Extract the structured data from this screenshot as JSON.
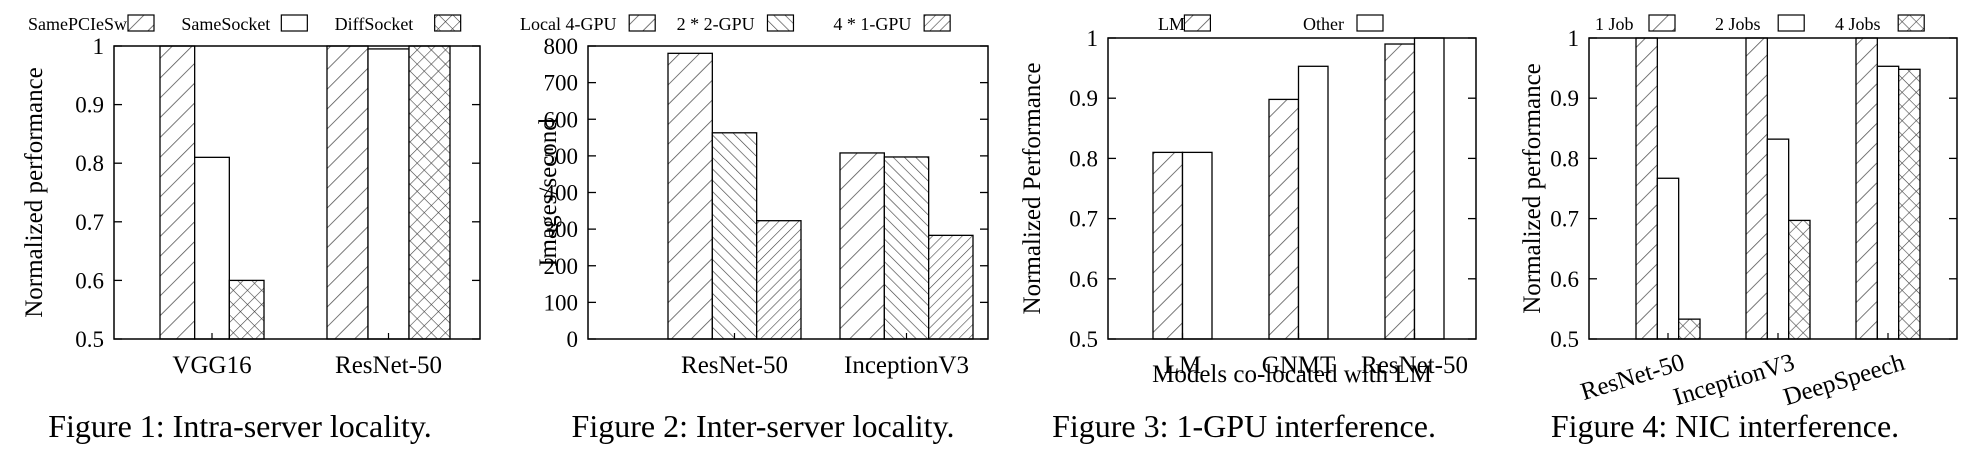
{
  "figures": [
    {
      "caption": "Figure 1: Intra-server locality.",
      "chart_data": {
        "type": "bar",
        "title": "",
        "xlabel": "",
        "ylabel": "Normalized performance",
        "categories": [
          "VGG16",
          "ResNet-50"
        ],
        "series": [
          {
            "name": "SamePCIeSw",
            "pattern": "diag",
            "values": [
              1.0,
              1.0
            ]
          },
          {
            "name": "SameSocket",
            "pattern": "plain",
            "values": [
              0.81,
              0.995
            ]
          },
          {
            "name": "DiffSocket",
            "pattern": "cross",
            "values": [
              0.6,
              1.0
            ]
          }
        ],
        "ylim": [
          0.5,
          1.0
        ],
        "yticks": [
          0.5,
          0.6,
          0.7,
          0.8,
          0.9,
          1
        ],
        "ytick_labels": [
          "0.5",
          "0.6",
          "0.7",
          "0.8",
          "0.9",
          "1"
        ],
        "grid": false,
        "legend": "top"
      }
    },
    {
      "caption": "Figure 2: Inter-server locality.",
      "chart_data": {
        "type": "bar",
        "title": "",
        "xlabel": "",
        "ylabel": "Images/second",
        "categories": [
          "ResNet-50",
          "InceptionV3"
        ],
        "series": [
          {
            "name": "Local 4-GPU",
            "pattern": "diag",
            "values": [
              780,
              508
            ]
          },
          {
            "name": "2 * 2-GPU",
            "pattern": "diag-dense",
            "values": [
              563,
              497
            ]
          },
          {
            "name": "4 * 1-GPU",
            "pattern": "diag-fine",
            "values": [
              323,
              283
            ]
          }
        ],
        "ylim": [
          0,
          800
        ],
        "yticks": [
          0,
          100,
          200,
          300,
          400,
          500,
          600,
          700,
          800
        ],
        "ytick_labels": [
          "0",
          "100",
          "200",
          "300",
          "400",
          "500",
          "600",
          "700",
          "800"
        ],
        "grid": false,
        "legend": "top"
      }
    },
    {
      "caption": "Figure 3: 1-GPU interference.",
      "chart_data": {
        "type": "bar",
        "title": "",
        "xlabel": "Models co-located with LM",
        "ylabel": "Normalized Performance",
        "categories": [
          "LM",
          "GNMT",
          "ResNet-50"
        ],
        "series": [
          {
            "name": "LM",
            "pattern": "diag",
            "values": [
              0.81,
              0.898,
              0.99
            ]
          },
          {
            "name": "Other",
            "pattern": "plain",
            "values": [
              0.81,
              0.953,
              1.0
            ]
          }
        ],
        "ylim": [
          0.5,
          1.0
        ],
        "yticks": [
          0.5,
          0.6,
          0.7,
          0.8,
          0.9,
          1
        ],
        "ytick_labels": [
          "0.5",
          "0.6",
          "0.7",
          "0.8",
          "0.9",
          "1"
        ],
        "grid": false,
        "legend": "top"
      }
    },
    {
      "caption": "Figure 4: NIC interference.",
      "chart_data": {
        "type": "bar",
        "title": "",
        "xlabel": "",
        "ylabel": "Normalized performance",
        "categories": [
          "ResNet-50",
          "InceptionV3",
          "DeepSpeech"
        ],
        "series": [
          {
            "name": "1 Job",
            "pattern": "diag",
            "values": [
              1.0,
              1.0,
              1.0
            ]
          },
          {
            "name": "2 Jobs",
            "pattern": "plain",
            "values": [
              0.767,
              0.832,
              0.953
            ]
          },
          {
            "name": "4 Jobs",
            "pattern": "cross",
            "values": [
              0.533,
              0.697,
              0.948
            ]
          }
        ],
        "ylim": [
          0.5,
          1.0
        ],
        "yticks": [
          0.5,
          0.6,
          0.7,
          0.8,
          0.9,
          1
        ],
        "ytick_labels": [
          "0.5",
          "0.6",
          "0.7",
          "0.8",
          "0.9",
          "1"
        ],
        "grid": false,
        "legend": "top"
      }
    }
  ]
}
